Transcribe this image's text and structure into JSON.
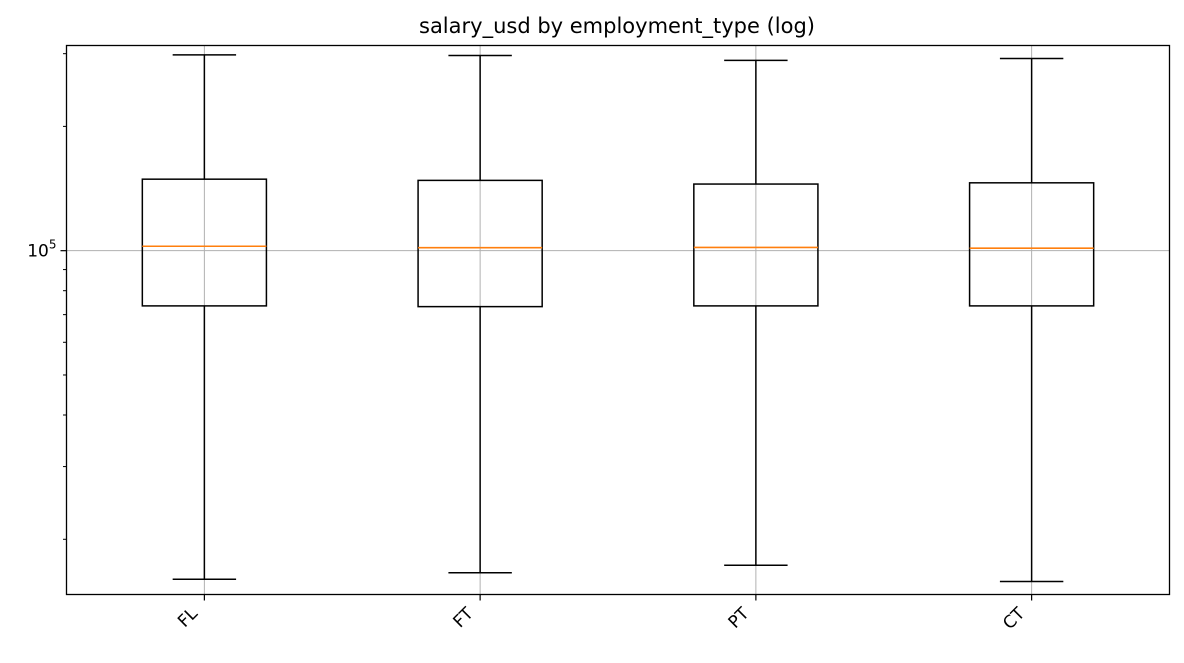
{
  "chart_data": {
    "type": "boxplot",
    "title": "salary_usd by employment_type (log)",
    "xlabel": "",
    "ylabel": "",
    "y_scale": "log",
    "ylim": [
      14700,
      314000
    ],
    "y_tick_labels": [
      {
        "value": 100000,
        "base": "10",
        "exponent": "5"
      }
    ],
    "y_minor_ticks": [
      20000,
      30000,
      40000,
      50000,
      60000,
      70000,
      80000,
      90000,
      200000,
      300000
    ],
    "grid": true,
    "categories": [
      "FL",
      "FT",
      "PT",
      "CT"
    ],
    "boxes": [
      {
        "category": "FL",
        "whisker_low": 16000,
        "q1": 73500,
        "median": 102500,
        "q3": 149000,
        "whisker_high": 298000
      },
      {
        "category": "FT",
        "whisker_low": 16600,
        "q1": 73200,
        "median": 101700,
        "q3": 148000,
        "whisker_high": 297000
      },
      {
        "category": "PT",
        "whisker_low": 17300,
        "q1": 73500,
        "median": 101800,
        "q3": 145000,
        "whisker_high": 289000
      },
      {
        "category": "CT",
        "whisker_low": 15800,
        "q1": 73500,
        "median": 101400,
        "q3": 146000,
        "whisker_high": 292000
      }
    ],
    "colors": {
      "box": "#000000",
      "median": "#ff7f0e",
      "grid": "#b0b0b0"
    }
  }
}
